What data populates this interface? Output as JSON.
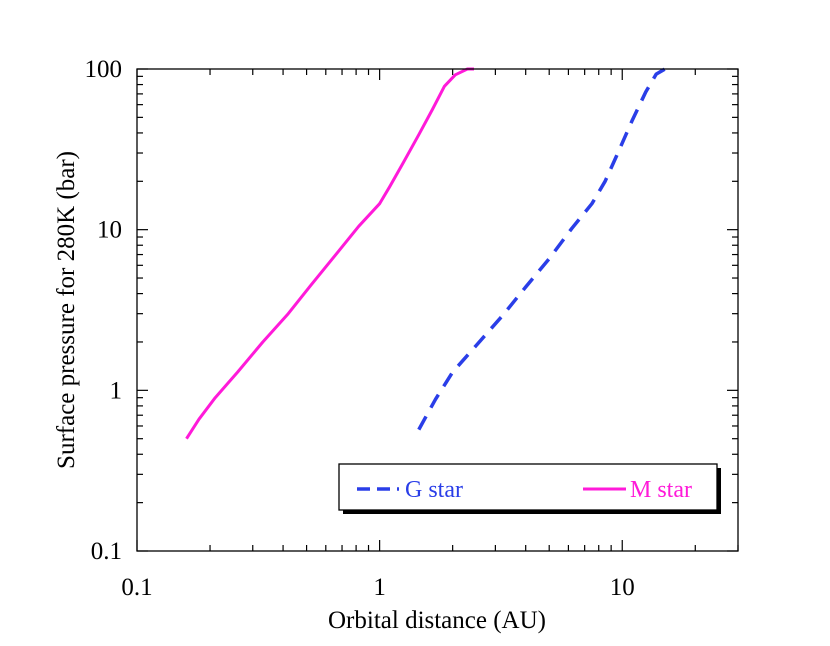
{
  "chart_data": {
    "type": "line",
    "title": "",
    "xlabel": "Orbital distance (AU)",
    "ylabel": "Surface pressure for 280K (bar)",
    "xscale": "log",
    "yscale": "log",
    "xlim": [
      0.1,
      30
    ],
    "ylim": [
      0.1,
      100
    ],
    "xticks": [
      {
        "value": 0.1,
        "label": "0.1"
      },
      {
        "value": 1,
        "label": "1"
      },
      {
        "value": 10,
        "label": "10"
      }
    ],
    "yticks": [
      {
        "value": 0.1,
        "label": "0.1"
      },
      {
        "value": 1,
        "label": "1"
      },
      {
        "value": 10,
        "label": "10"
      },
      {
        "value": 100,
        "label": "100"
      }
    ],
    "legend_position": "bottom-right",
    "series": [
      {
        "name": "G star",
        "color": "#2a3ee8",
        "style": "dashed",
        "points": [
          [
            1.45,
            0.57
          ],
          [
            1.7,
            0.88
          ],
          [
            2.0,
            1.3
          ],
          [
            2.5,
            1.9
          ],
          [
            3.2,
            2.9
          ],
          [
            4.0,
            4.4
          ],
          [
            5.0,
            6.6
          ],
          [
            6.2,
            10.2
          ],
          [
            7.5,
            14.5
          ],
          [
            8.5,
            20
          ],
          [
            9.5,
            29
          ],
          [
            11.0,
            48
          ],
          [
            12.5,
            72
          ],
          [
            13.8,
            93
          ],
          [
            15.0,
            100
          ]
        ]
      },
      {
        "name": "M star",
        "color": "#ff1ad9",
        "style": "solid",
        "points": [
          [
            0.16,
            0.5
          ],
          [
            0.18,
            0.66
          ],
          [
            0.21,
            0.9
          ],
          [
            0.26,
            1.3
          ],
          [
            0.33,
            2.0
          ],
          [
            0.42,
            3.0
          ],
          [
            0.52,
            4.5
          ],
          [
            0.65,
            6.8
          ],
          [
            0.82,
            10.5
          ],
          [
            1.0,
            14.5
          ],
          [
            1.1,
            18.5
          ],
          [
            1.25,
            26
          ],
          [
            1.45,
            39
          ],
          [
            1.65,
            56
          ],
          [
            1.85,
            78
          ],
          [
            2.05,
            92
          ],
          [
            2.3,
            100
          ],
          [
            2.45,
            100
          ]
        ]
      }
    ]
  }
}
